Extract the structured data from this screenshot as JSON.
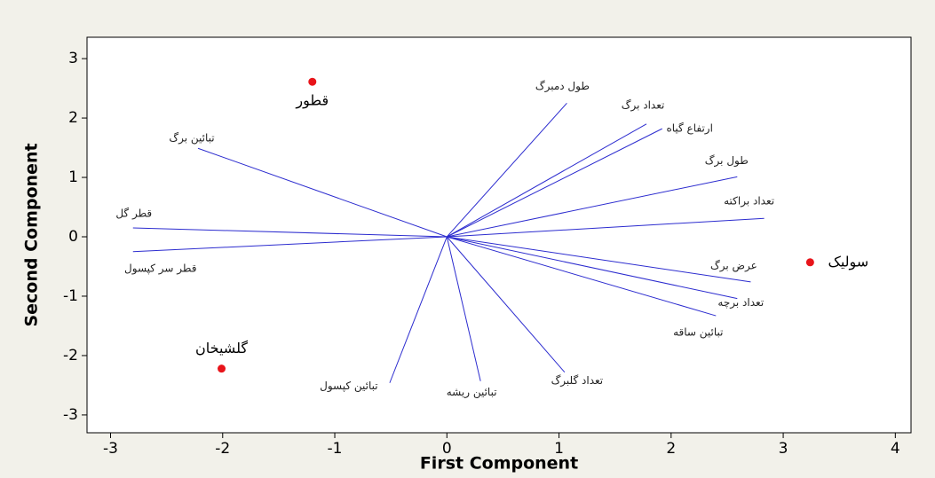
{
  "chart_data": {
    "type": "biplot",
    "xlabel": "First Component",
    "ylabel": "Second Component",
    "xlim": [
      -3.21,
      4.14
    ],
    "ylim": [
      -3.3,
      3.36
    ],
    "xticks": [
      -3,
      -2,
      -1,
      0,
      1,
      2,
      3,
      4
    ],
    "yticks": [
      -3,
      -2,
      -1,
      0,
      1,
      2,
      3
    ],
    "vector_color": "#2c2ccf",
    "point_color": "#e8141a",
    "loadings": [
      {
        "name": "طول دمبرگ",
        "x": 1.07,
        "y": 2.25
      },
      {
        "name": "تعداد برگ",
        "x": 1.78,
        "y": 1.9
      },
      {
        "name": "ارتفاع گیاه",
        "x": 1.92,
        "y": 1.82
      },
      {
        "name": "طول برگ",
        "x": 2.59,
        "y": 1.01
      },
      {
        "name": "تعداد براکته",
        "x": 2.83,
        "y": 0.31
      },
      {
        "name": "عرض برگ",
        "x": 2.71,
        "y": -0.76
      },
      {
        "name": "تعداد برچه",
        "x": 2.59,
        "y": -1.04
      },
      {
        "name": "تبائین ساقه",
        "x": 2.4,
        "y": -1.33
      },
      {
        "name": "تعداد گلبرگ",
        "x": 1.05,
        "y": -2.28
      },
      {
        "name": "تبائین ریشه",
        "x": 0.3,
        "y": -2.43
      },
      {
        "name": "تبائین کپسول",
        "x": -0.51,
        "y": -2.46
      },
      {
        "name": "قطر سر کپسول",
        "x": -2.8,
        "y": -0.25
      },
      {
        "name": "قطر گل",
        "x": -2.8,
        "y": 0.15
      },
      {
        "name": "تبائین برگ",
        "x": -2.22,
        "y": 1.49
      }
    ],
    "scores": [
      {
        "name": "قطور",
        "x": -1.2,
        "y": 2.61
      },
      {
        "name": "گلشیخان",
        "x": -2.01,
        "y": -2.22
      },
      {
        "name": "سولیک",
        "x": 3.24,
        "y": -0.43
      }
    ]
  }
}
